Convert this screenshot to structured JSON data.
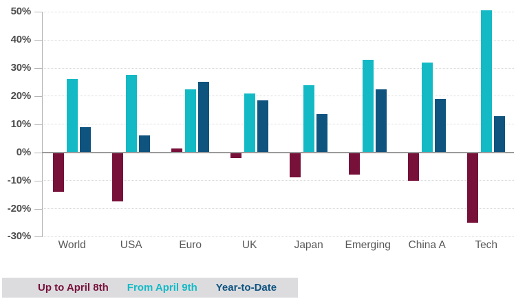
{
  "chart_data": {
    "type": "bar",
    "title": "",
    "categories": [
      "World",
      "USA",
      "Euro",
      "UK",
      "Japan",
      "Emerging",
      "China A",
      "Tech"
    ],
    "series": [
      {
        "name": "Up to April 8th",
        "color": "#77113A",
        "values": [
          -14,
          -17.5,
          1.5,
          -2,
          -9,
          -8,
          -10,
          -25
        ]
      },
      {
        "name": "From April 9th",
        "color": "#13BAC5",
        "values": [
          26,
          27.5,
          22.5,
          21,
          24,
          33,
          32,
          50.5
        ]
      },
      {
        "name": "Year-to-Date",
        "color": "#0F537F",
        "values": [
          9,
          6,
          25,
          18.5,
          13.5,
          22.5,
          19,
          13
        ]
      }
    ],
    "y_axis": {
      "min": -30,
      "max": 50,
      "step": 10,
      "tick_labels": [
        "50%",
        "40%",
        "30%",
        "20%",
        "10%",
        "0%",
        "-10%",
        "-20%",
        "-30%"
      ]
    },
    "grid": "horizontal-dotted",
    "legend": {
      "position": "bottom-left"
    },
    "axis_colors": {
      "grid": "#d8d8d8",
      "zero_line": "#9b9b9b",
      "tick": "#b3b3b3",
      "y_label": "#4d4d4d",
      "category_label": "#575757",
      "legend_bg": "#dcdcdf"
    }
  }
}
